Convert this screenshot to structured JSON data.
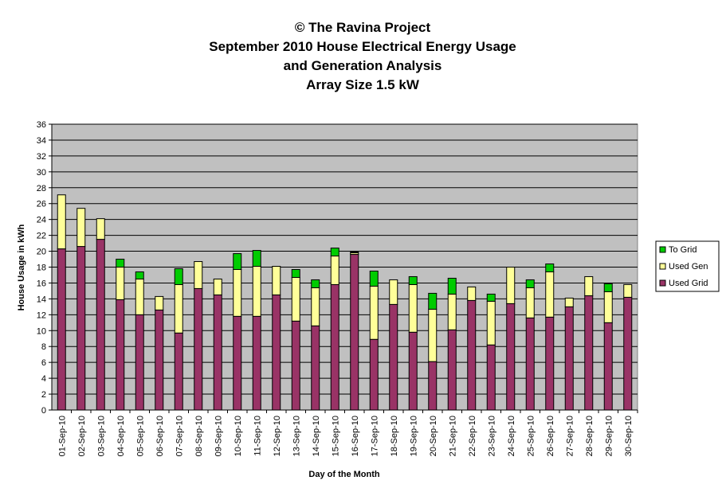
{
  "chart_data": {
    "type": "bar",
    "stacked": true,
    "title_lines": [
      "© The Ravina Project",
      "September 2010 House Electrical Energy Usage",
      "and Generation Analysis",
      "Array Size 1.5 kW"
    ],
    "xlabel": "Day of the Month",
    "ylabel": "House Usage in kWh",
    "ylim": [
      0,
      36
    ],
    "ytick_step": 2,
    "grid": true,
    "legend_position": "right",
    "categories": [
      "01-Sep-10",
      "02-Sep-10",
      "03-Sep-10",
      "04-Sep-10",
      "05-Sep-10",
      "06-Sep-10",
      "07-Sep-10",
      "08-Sep-10",
      "09-Sep-10",
      "10-Sep-10",
      "11-Sep-10",
      "12-Sep-10",
      "13-Sep-10",
      "14-Sep-10",
      "15-Sep-10",
      "16-Sep-10",
      "17-Sep-10",
      "18-Sep-10",
      "19-Sep-10",
      "20-Sep-10",
      "21-Sep-10",
      "22-Sep-10",
      "23-Sep-10",
      "24-Sep-10",
      "25-Sep-10",
      "26-Sep-10",
      "27-Sep-10",
      "28-Sep-10",
      "29-Sep-10",
      "30-Sep-10"
    ],
    "series": [
      {
        "name": "Used Grid",
        "color": "#993366",
        "values": [
          20.3,
          20.6,
          21.5,
          13.9,
          12.0,
          12.6,
          9.7,
          15.3,
          14.5,
          11.8,
          11.8,
          14.5,
          11.2,
          10.6,
          15.8,
          19.6,
          8.9,
          13.3,
          9.8,
          6.1,
          10.1,
          13.8,
          8.2,
          13.4,
          11.6,
          11.7,
          13.0,
          14.4,
          11.0,
          14.2
        ]
      },
      {
        "name": "Used Gen",
        "color": "#ffff99",
        "values": [
          6.8,
          4.8,
          2.6,
          4.1,
          4.5,
          1.7,
          6.1,
          3.4,
          2.0,
          5.9,
          6.3,
          3.6,
          5.5,
          4.8,
          3.6,
          0.2,
          6.7,
          3.1,
          6.0,
          6.6,
          4.5,
          1.7,
          5.5,
          4.6,
          3.8,
          5.7,
          1.1,
          2.4,
          3.9,
          1.6
        ]
      },
      {
        "name": "To Grid",
        "color": "#00cc00",
        "values": [
          0,
          0,
          0,
          1.0,
          0.9,
          0,
          2.0,
          0,
          0,
          2.0,
          2.0,
          0,
          1.0,
          1.0,
          1.0,
          0.1,
          1.9,
          0,
          1.0,
          2.0,
          2.0,
          0,
          0.9,
          0,
          1.0,
          1.0,
          0,
          0,
          1.0,
          0
        ]
      }
    ],
    "legend_order": [
      "To Grid",
      "Used Gen",
      "Used Grid"
    ],
    "colors": {
      "plot_background": "#c0c0c0",
      "gridline": "#000000",
      "bar_outline": "#000000"
    }
  }
}
